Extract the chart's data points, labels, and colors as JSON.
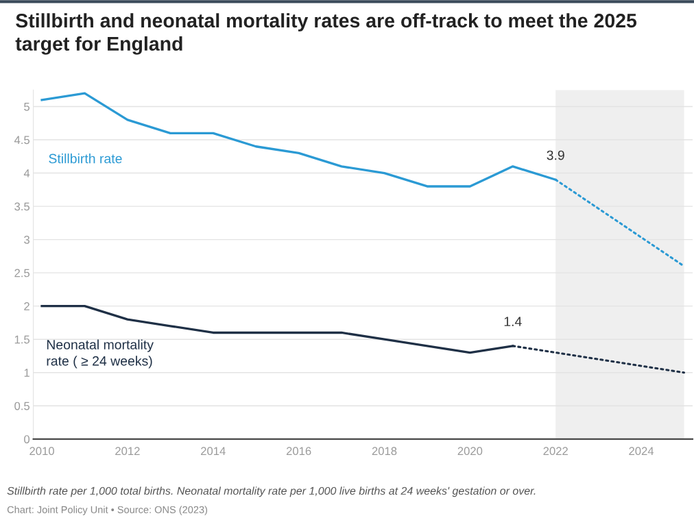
{
  "chart_data": {
    "type": "line",
    "title": "Stillbirth and neonatal mortality rates are off-track to meet the 2025 target for England",
    "series": [
      {
        "name": "Stillbirth rate",
        "color": "#2b9ad4",
        "x": [
          2010,
          2011,
          2012,
          2013,
          2014,
          2015,
          2016,
          2017,
          2018,
          2019,
          2020,
          2021,
          2022
        ],
        "values": [
          5.1,
          5.2,
          4.8,
          4.6,
          4.6,
          4.4,
          4.3,
          4.1,
          4.0,
          3.8,
          3.8,
          4.1,
          3.9
        ]
      },
      {
        "color": "#2b9ad4",
        "line_style": "dotted",
        "x": [
          2022,
          2025
        ],
        "values": [
          3.9,
          2.6
        ]
      },
      {
        "name": "Neonatal mortality rate ( ≥ 24 weeks)",
        "color": "#1f3046",
        "x": [
          2010,
          2011,
          2012,
          2013,
          2014,
          2015,
          2016,
          2017,
          2018,
          2019,
          2020,
          2021
        ],
        "values": [
          2.0,
          2.0,
          1.8,
          1.7,
          1.6,
          1.6,
          1.6,
          1.6,
          1.5,
          1.4,
          1.3,
          1.4
        ]
      },
      {
        "color": "#1f3046",
        "line_style": "dotted",
        "x": [
          2021,
          2025
        ],
        "values": [
          1.4,
          1.0
        ]
      }
    ],
    "xlim": [
      2009.8,
      2025.2
    ],
    "xticks": [
      2010,
      2012,
      2014,
      2016,
      2018,
      2020,
      2022,
      2024
    ],
    "ylim": [
      0,
      5.25
    ],
    "yticks": [
      0,
      0.5,
      1,
      1.5,
      2,
      2.5,
      3,
      3.5,
      4,
      4.5,
      5
    ],
    "bands": [
      {
        "axis": "x",
        "from": 2022,
        "to": 2025,
        "color": "#efefef"
      }
    ],
    "grid": "y",
    "legend": false,
    "annotations": [
      {
        "text": "3.9",
        "x": 2022,
        "y": 3.9
      },
      {
        "text": "1.4",
        "x": 2021,
        "y": 1.4
      },
      "Stillbirth rate per 1,000 total births. Neonatal mortality rate per 1,000 live births at 24 weeks' gestation or over.",
      "Chart: Joint Policy Unit • Source: ONS (2023)"
    ]
  }
}
